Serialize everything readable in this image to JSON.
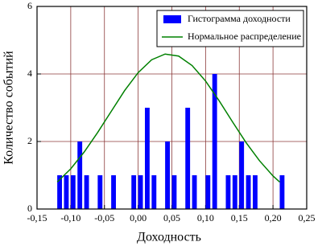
{
  "chart_data": {
    "type": "histogram",
    "x_label": "Доходность",
    "y_label": "Количество событий",
    "xlim": [
      -0.15,
      0.25
    ],
    "xticks": [
      {
        "value": -0.15,
        "label": "-0,15"
      },
      {
        "value": -0.1,
        "label": "-0,10"
      },
      {
        "value": -0.05,
        "label": "-0,05"
      },
      {
        "value": 0,
        "label": "0,00"
      },
      {
        "value": 0.05,
        "label": "0,05"
      },
      {
        "value": 0.1,
        "label": "0,10"
      },
      {
        "value": 0.15,
        "label": "0,15"
      },
      {
        "value": 0.2,
        "label": "0,20"
      },
      {
        "value": 0.25,
        "label": "0,25"
      }
    ],
    "ylim": [
      0,
      6
    ],
    "yticks": [
      0,
      2,
      4,
      6
    ],
    "grid": true,
    "grid_color": "#8b3a3a",
    "legend": "upper right",
    "series": [
      {
        "name": "Гистограмма доходности",
        "type": "histogram",
        "color": "#0000ff",
        "bins": [
          -0.12,
          -0.11,
          -0.1,
          -0.09,
          -0.08,
          -0.07,
          -0.06,
          -0.05,
          -0.04,
          -0.03,
          -0.02,
          -0.01,
          0,
          0.01,
          0.02,
          0.03,
          0.04,
          0.05,
          0.06,
          0.07,
          0.08,
          0.09,
          0.1,
          0.11,
          0.12,
          0.13,
          0.14,
          0.15,
          0.16,
          0.17,
          0.18,
          0.19,
          0.2,
          0.21,
          0.22
        ],
        "values": [
          1,
          1,
          1,
          2,
          1,
          0,
          1,
          0,
          1,
          0,
          0,
          1,
          1,
          3,
          1,
          0,
          2,
          1,
          0,
          3,
          1,
          0,
          1,
          4,
          0,
          1,
          1,
          2,
          1,
          1,
          0,
          0,
          0,
          1
        ]
      },
      {
        "name": "Нормальное распределение",
        "type": "line",
        "color": "#008000",
        "x": [
          -0.12,
          -0.1,
          -0.08,
          -0.06,
          -0.04,
          -0.02,
          0,
          0.02,
          0.04,
          0.06,
          0.08,
          0.1,
          0.12,
          0.14,
          0.16,
          0.18,
          0.2,
          0.21
        ],
        "values": [
          0.8,
          1.19,
          1.69,
          2.27,
          2.89,
          3.51,
          4.04,
          4.42,
          4.59,
          4.53,
          4.25,
          3.79,
          3.21,
          2.58,
          1.97,
          1.43,
          0.98,
          0.8
        ]
      }
    ]
  }
}
